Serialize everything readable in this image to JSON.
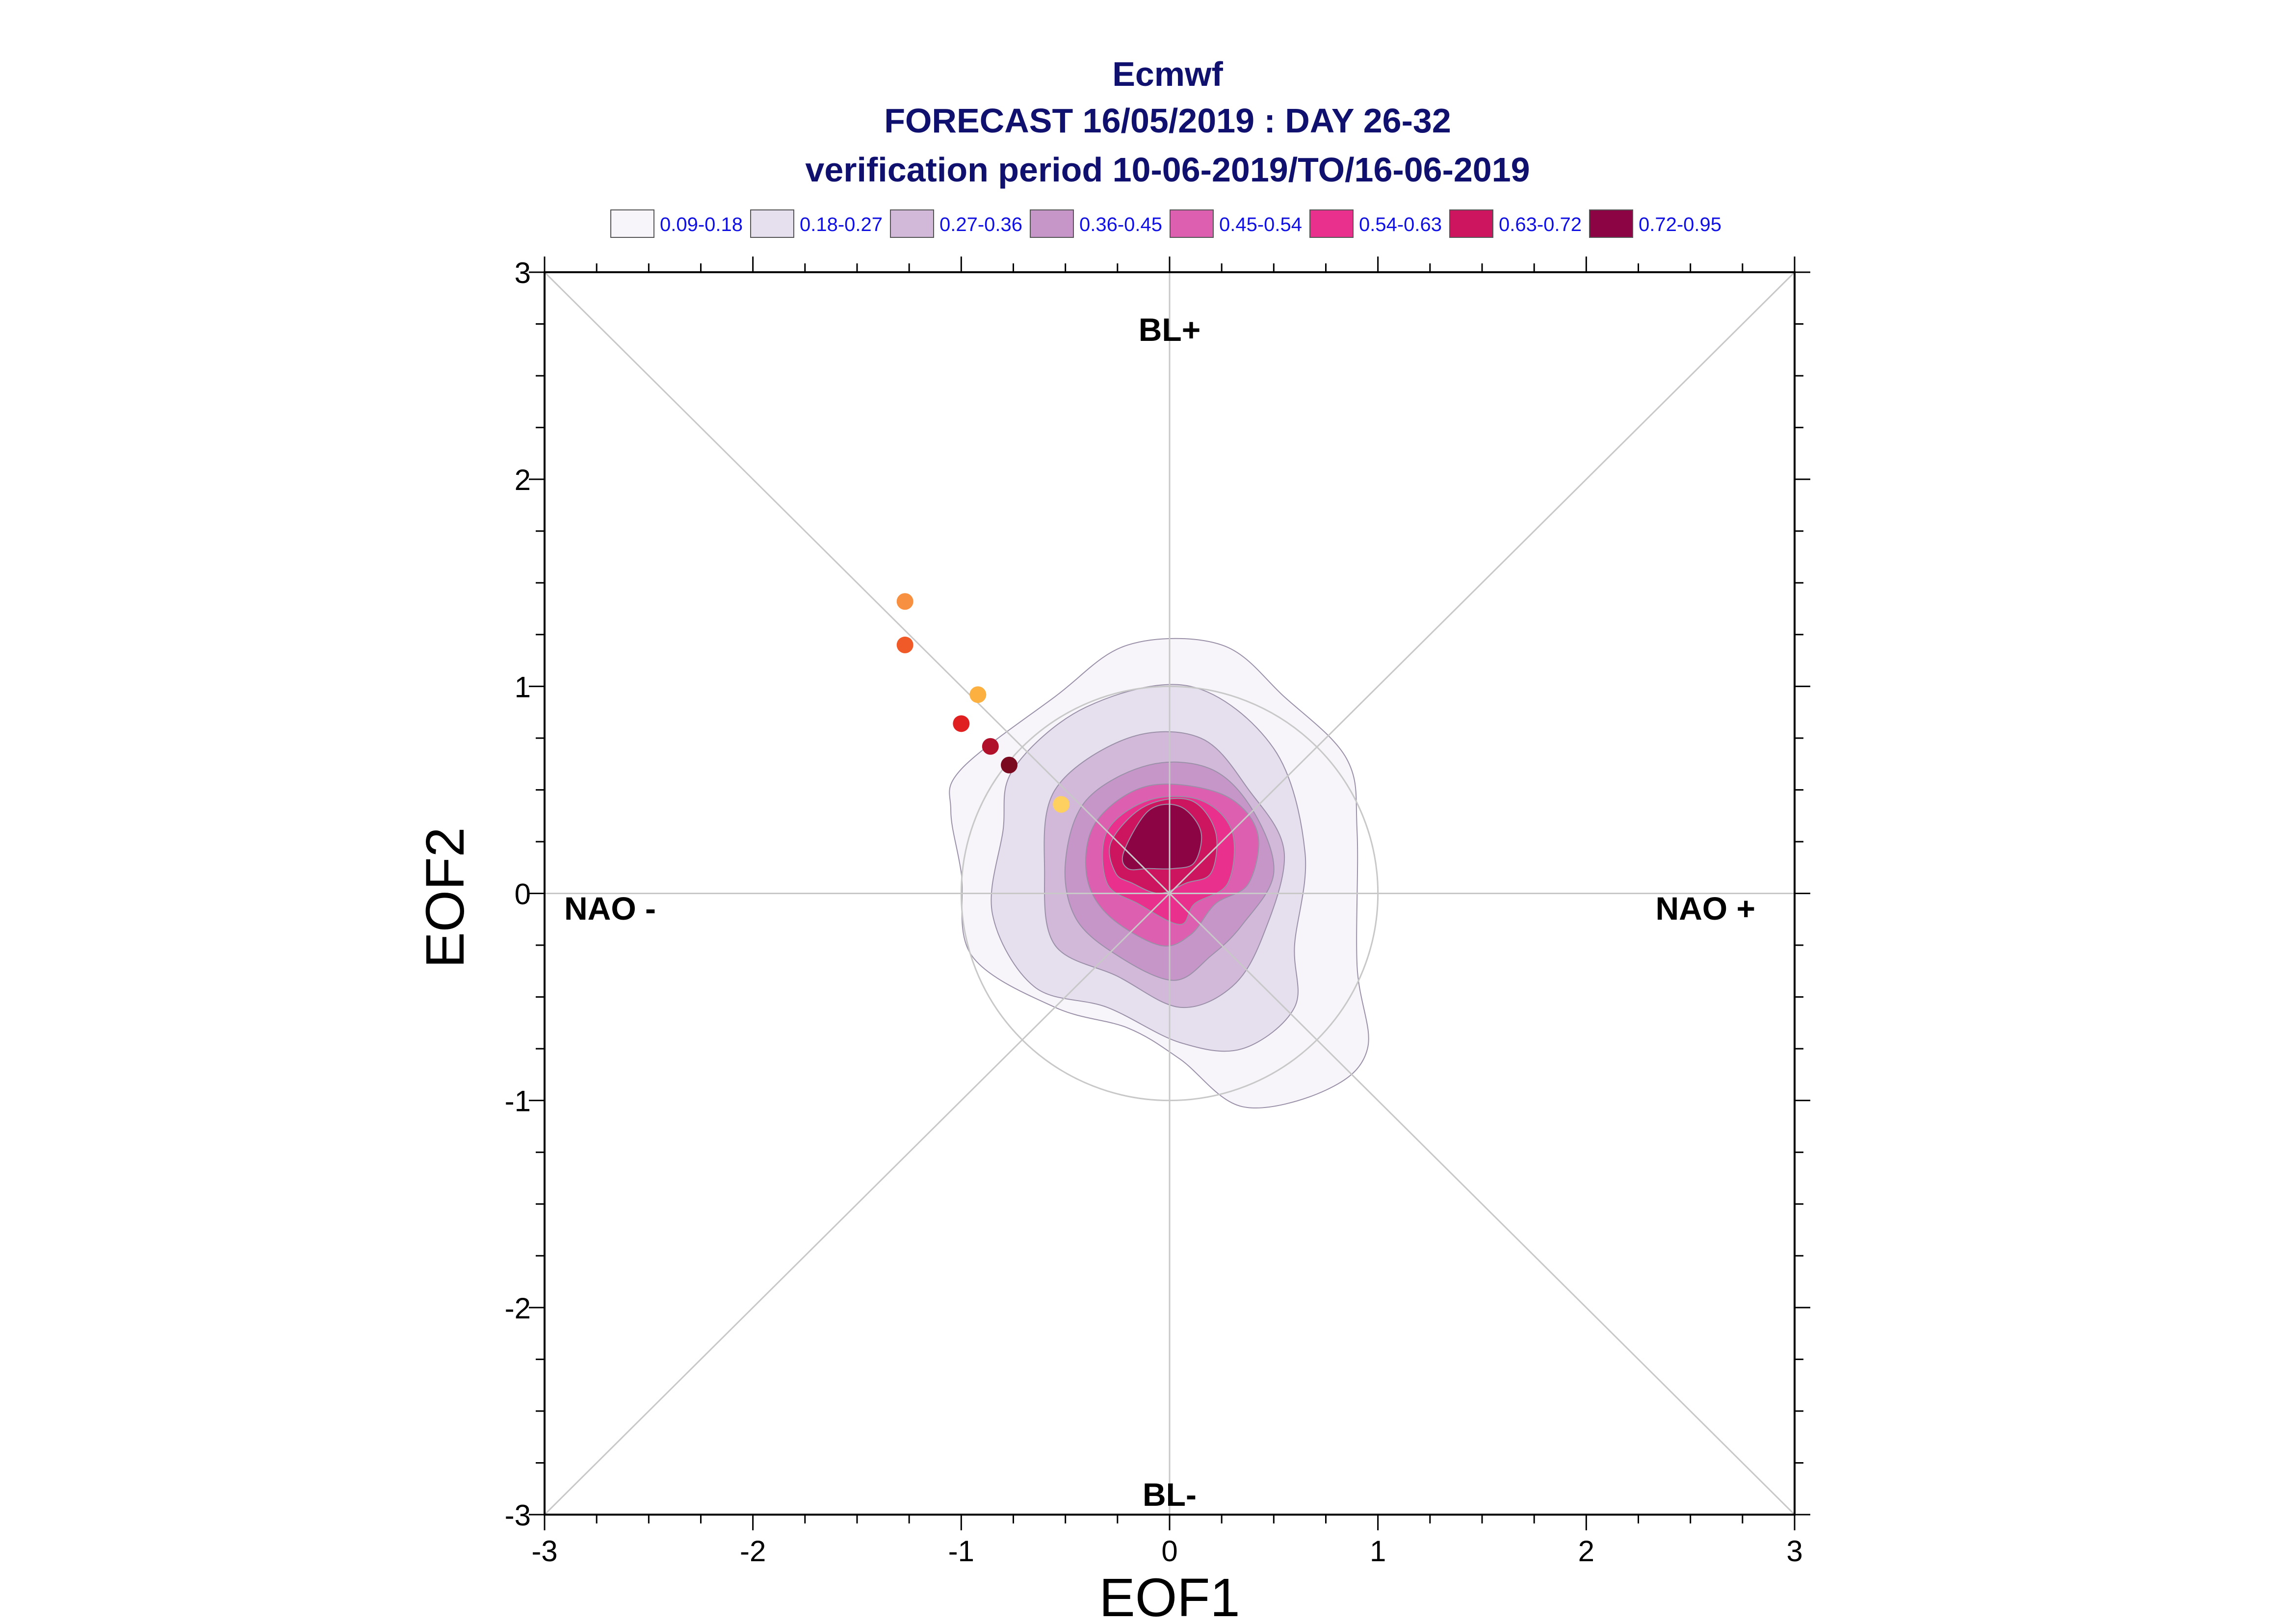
{
  "chart_data": {
    "type": "contour-scatter",
    "title_lines": [
      "Ecmwf",
      "FORECAST 16/05/2019 : DAY 26-32",
      "verification period 10-06-2019/TO/16-06-2019"
    ],
    "xlabel": "EOF1",
    "ylabel": "EOF2",
    "xlim": [
      -3,
      3
    ],
    "ylim": [
      -3,
      3
    ],
    "xticks": [
      -3,
      -2,
      -1,
      0,
      1,
      2,
      3
    ],
    "yticks": [
      -3,
      -2,
      -1,
      0,
      1,
      2,
      3
    ],
    "xtick_labels": [
      "-3",
      "-2",
      "-1",
      "0",
      "1",
      "2",
      "3"
    ],
    "ytick_labels": [
      "-3",
      "-2",
      "-1",
      "0",
      "1",
      "2",
      "3"
    ],
    "legend_position": "top",
    "legend": [
      {
        "label": "0.09-0.18",
        "color": "#f7f5fa"
      },
      {
        "label": "0.18-0.27",
        "color": "#e6e0ee"
      },
      {
        "label": "0.27-0.36",
        "color": "#d2b8d9"
      },
      {
        "label": "0.36-0.45",
        "color": "#c796c8"
      },
      {
        "label": "0.45-0.54",
        "color": "#dc5fb0"
      },
      {
        "label": "0.54-0.63",
        "color": "#e8308c"
      },
      {
        "label": "0.63-0.72",
        "color": "#cc145f"
      },
      {
        "label": "0.72-0.95",
        "color": "#8c0444"
      }
    ],
    "regime_labels": {
      "top": "BL+",
      "bottom": "BL-",
      "left": "NAO -",
      "right": "NAO +"
    },
    "reference_circle_radius": 1,
    "contours": [
      {
        "level": 0,
        "color": "#f7f5fa",
        "points": [
          [
            -1.0,
            0.6
          ],
          [
            -0.55,
            0.95
          ],
          [
            -0.2,
            1.2
          ],
          [
            0.25,
            1.2
          ],
          [
            0.55,
            0.95
          ],
          [
            0.85,
            0.65
          ],
          [
            0.9,
            0.3
          ],
          [
            0.9,
            -0.35
          ],
          [
            0.95,
            -0.75
          ],
          [
            0.75,
            -0.95
          ],
          [
            0.35,
            -1.03
          ],
          [
            0.05,
            -0.8
          ],
          [
            -0.2,
            -0.65
          ],
          [
            -0.55,
            -0.55
          ],
          [
            -0.95,
            -0.3
          ],
          [
            -1.0,
            0.1
          ],
          [
            -1.05,
            0.4
          ]
        ]
      },
      {
        "level": 1,
        "color": "#e6e0ee",
        "points": [
          [
            -0.75,
            0.6
          ],
          [
            -0.4,
            0.9
          ],
          [
            0.1,
            1.0
          ],
          [
            0.5,
            0.7
          ],
          [
            0.65,
            0.2
          ],
          [
            0.6,
            -0.25
          ],
          [
            0.6,
            -0.55
          ],
          [
            0.35,
            -0.75
          ],
          [
            0.05,
            -0.72
          ],
          [
            -0.3,
            -0.55
          ],
          [
            -0.65,
            -0.45
          ],
          [
            -0.85,
            -0.1
          ],
          [
            -0.8,
            0.3
          ]
        ]
      },
      {
        "level": 2,
        "color": "#d2b8d9",
        "points": [
          [
            -0.55,
            0.5
          ],
          [
            -0.2,
            0.75
          ],
          [
            0.15,
            0.75
          ],
          [
            0.38,
            0.5
          ],
          [
            0.55,
            0.2
          ],
          [
            0.45,
            -0.2
          ],
          [
            0.3,
            -0.45
          ],
          [
            0.05,
            -0.55
          ],
          [
            -0.25,
            -0.4
          ],
          [
            -0.55,
            -0.25
          ],
          [
            -0.6,
            0.1
          ]
        ]
      },
      {
        "level": 3,
        "color": "#c796c8",
        "points": [
          [
            -0.4,
            0.45
          ],
          [
            -0.1,
            0.62
          ],
          [
            0.2,
            0.6
          ],
          [
            0.4,
            0.4
          ],
          [
            0.5,
            0.1
          ],
          [
            0.35,
            -0.15
          ],
          [
            0.2,
            -0.3
          ],
          [
            0.02,
            -0.42
          ],
          [
            -0.25,
            -0.3
          ],
          [
            -0.45,
            -0.12
          ],
          [
            -0.5,
            0.15
          ]
        ]
      },
      {
        "level": 4,
        "color": "#dc5fb0",
        "points": [
          [
            -0.35,
            0.35
          ],
          [
            -0.1,
            0.52
          ],
          [
            0.25,
            0.48
          ],
          [
            0.42,
            0.3
          ],
          [
            0.38,
            0.05
          ],
          [
            0.22,
            -0.05
          ],
          [
            0.1,
            -0.2
          ],
          [
            -0.05,
            -0.25
          ],
          [
            -0.3,
            -0.1
          ],
          [
            -0.4,
            0.1
          ]
        ]
      },
      {
        "level": 5,
        "color": "#e8308c",
        "points": [
          [
            -0.3,
            0.3
          ],
          [
            -0.1,
            0.45
          ],
          [
            0.15,
            0.45
          ],
          [
            0.3,
            0.3
          ],
          [
            0.28,
            0.05
          ],
          [
            0.12,
            -0.05
          ],
          [
            0.05,
            -0.15
          ],
          [
            -0.15,
            -0.05
          ],
          [
            -0.3,
            0.05
          ]
        ]
      },
      {
        "level": 6,
        "color": "#cc145f",
        "points": [
          [
            -0.28,
            0.25
          ],
          [
            -0.12,
            0.42
          ],
          [
            0.1,
            0.45
          ],
          [
            0.22,
            0.3
          ],
          [
            0.2,
            0.1
          ],
          [
            0.08,
            0.05
          ],
          [
            -0.05,
            0.0
          ],
          [
            -0.18,
            0.05
          ],
          [
            -0.26,
            0.1
          ]
        ]
      },
      {
        "level": 7,
        "color": "#8c0444",
        "points": [
          [
            -0.22,
            0.2
          ],
          [
            -0.1,
            0.4
          ],
          [
            0.05,
            0.42
          ],
          [
            0.15,
            0.3
          ],
          [
            0.12,
            0.15
          ],
          [
            0.02,
            0.12
          ],
          [
            -0.1,
            0.12
          ],
          [
            -0.2,
            0.12
          ]
        ]
      }
    ],
    "points": [
      {
        "x": -1.27,
        "y": 1.41,
        "color": "#f79040"
      },
      {
        "x": -1.27,
        "y": 1.2,
        "color": "#f05a28"
      },
      {
        "x": -0.92,
        "y": 0.96,
        "color": "#fbb040"
      },
      {
        "x": -1.0,
        "y": 0.82,
        "color": "#e02020"
      },
      {
        "x": -0.86,
        "y": 0.71,
        "color": "#b0102a"
      },
      {
        "x": -0.77,
        "y": 0.62,
        "color": "#7a0a20"
      },
      {
        "x": -0.52,
        "y": 0.43,
        "color": "#fdd060"
      }
    ]
  }
}
